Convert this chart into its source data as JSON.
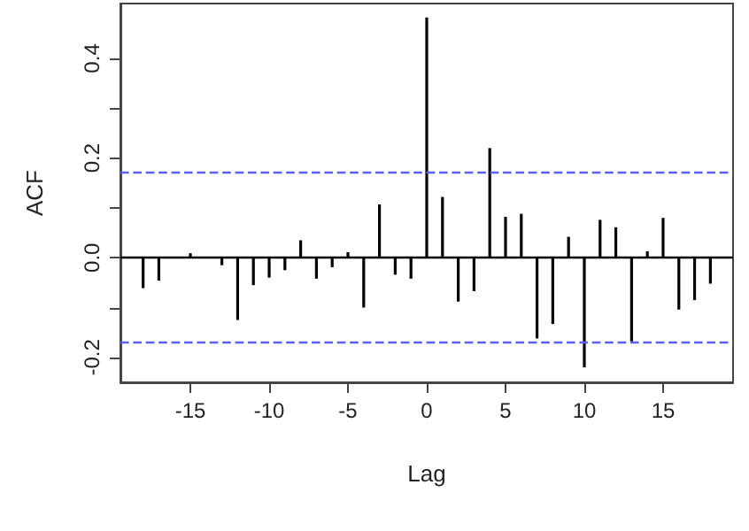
{
  "chart_data": {
    "type": "bar",
    "xlabel": "Lag",
    "ylabel": "ACF",
    "x": [
      -18,
      -17,
      -16,
      -15,
      -14,
      -13,
      -12,
      -11,
      -10,
      -9,
      -8,
      -7,
      -6,
      -5,
      -4,
      -3,
      -2,
      -1,
      0,
      1,
      2,
      3,
      4,
      5,
      6,
      7,
      8,
      9,
      10,
      11,
      12,
      13,
      14,
      15,
      16,
      17,
      18
    ],
    "series": [
      {
        "color": "#000000",
        "values": [
          -0.061,
          -0.046,
          0.0,
          0.009,
          null,
          -0.015,
          -0.125,
          -0.055,
          -0.04,
          -0.025,
          0.035,
          -0.042,
          -0.019,
          0.011,
          -0.1,
          0.107,
          -0.034,
          -0.042,
          0.482,
          0.122,
          -0.088,
          -0.067,
          0.22,
          0.082,
          0.088,
          -0.162,
          -0.133,
          0.042,
          -0.22,
          0.076,
          0.061,
          -0.168,
          0.013,
          0.08,
          -0.104,
          -0.085,
          -0.052
        ]
      }
    ],
    "xlim": [
      -19.44,
      19.44
    ],
    "xticks": [
      -15,
      -10,
      -5,
      0,
      5,
      10,
      15
    ],
    "ylim": [
      -0.25,
      0.51
    ],
    "yticks": [
      {
        "value": -0.2,
        "label": "-0.2"
      },
      {
        "value": -0.1,
        "label": null
      },
      {
        "value": 0,
        "label": "0.0"
      },
      {
        "value": 0.1,
        "label": null
      },
      {
        "value": 0.2,
        "label": "0.2"
      },
      {
        "value": 0.3,
        "label": null
      },
      {
        "value": 0.4,
        "label": "0.4"
      }
    ],
    "ref_lines": [
      {
        "axis": "y",
        "value": 0,
        "color": "#000000",
        "line_style": "solid"
      },
      {
        "axis": "y",
        "value": 0.167,
        "color": "#5c5cff",
        "line_style": "dashed"
      },
      {
        "axis": "y",
        "value": -0.168,
        "color": "#5c5cff",
        "line_style": "dashed"
      }
    ]
  }
}
